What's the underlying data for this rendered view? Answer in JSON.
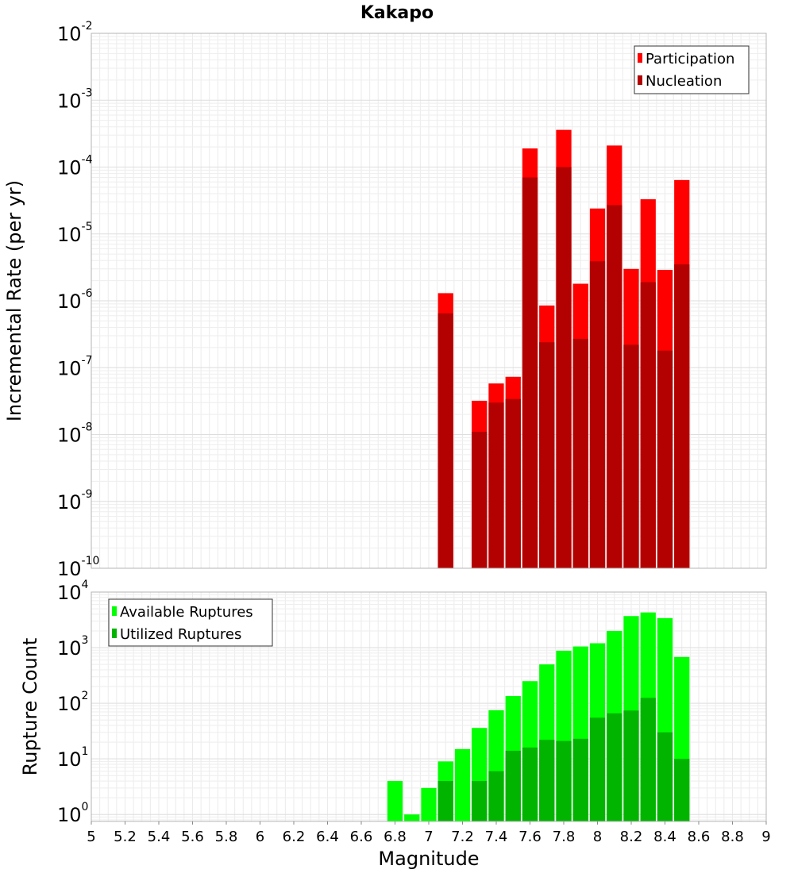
{
  "chart_data": [
    {
      "type": "bar",
      "title": "Kakapo",
      "xlabel": "",
      "ylabel": "Incremental Rate (per yr)",
      "yscale": "log",
      "ylim": [
        1e-10,
        0.01
      ],
      "xlim": [
        5,
        9
      ],
      "bin_width": 0.1,
      "grid": true,
      "legend_position": "top-right",
      "y_tick_labels": [
        {
          "base": "10",
          "exp": "-10"
        },
        {
          "base": "10",
          "exp": "-9"
        },
        {
          "base": "10",
          "exp": "-8"
        },
        {
          "base": "10",
          "exp": "-7"
        },
        {
          "base": "10",
          "exp": "-6"
        },
        {
          "base": "10",
          "exp": "-5"
        },
        {
          "base": "10",
          "exp": "-4"
        },
        {
          "base": "10",
          "exp": "-3"
        },
        {
          "base": "10",
          "exp": "-2"
        }
      ],
      "x": [
        7.1,
        7.3,
        7.4,
        7.5,
        7.6,
        7.7,
        7.8,
        7.9,
        8.0,
        8.1,
        8.2,
        8.3,
        8.4,
        8.5
      ],
      "series": [
        {
          "name": "Participation",
          "color": "#ff0000",
          "values": [
            1.3e-06,
            3.2e-08,
            5.8e-08,
            7.3e-08,
            0.00019,
            8.5e-07,
            0.00036,
            1.8e-06,
            2.4e-05,
            0.00021,
            3e-06,
            3.3e-05,
            2.9e-06,
            6.4e-05
          ]
        },
        {
          "name": "Nucleation",
          "color": "#b30000",
          "values": [
            6.5e-07,
            1.1e-08,
            3e-08,
            3.4e-08,
            7e-05,
            2.4e-07,
            0.0001,
            2.7e-07,
            3.9e-06,
            2.7e-05,
            2.2e-07,
            1.9e-06,
            1.8e-07,
            3.5e-06
          ]
        }
      ]
    },
    {
      "type": "bar",
      "title": "",
      "xlabel": "Magnitude",
      "ylabel": "Rupture Count",
      "yscale": "log",
      "ylim": [
        0.75,
        10000
      ],
      "xlim": [
        5,
        9
      ],
      "bin_width": 0.1,
      "grid": true,
      "legend_position": "top-left",
      "y_tick_labels": [
        {
          "base": "10",
          "exp": "0"
        },
        {
          "base": "10",
          "exp": "1"
        },
        {
          "base": "10",
          "exp": "2"
        },
        {
          "base": "10",
          "exp": "3"
        },
        {
          "base": "10",
          "exp": "4"
        }
      ],
      "x_tick_labels": [
        "5",
        "5.2",
        "5.4",
        "5.6",
        "5.8",
        "6",
        "6.2",
        "6.4",
        "6.6",
        "6.8",
        "7",
        "7.2",
        "7.4",
        "7.6",
        "7.8",
        "8",
        "8.2",
        "8.4",
        "8.6",
        "8.8",
        "9"
      ],
      "x": [
        6.8,
        6.9,
        7.0,
        7.1,
        7.2,
        7.3,
        7.4,
        7.5,
        7.6,
        7.7,
        7.8,
        7.9,
        8.0,
        8.1,
        8.2,
        8.3,
        8.4,
        8.5
      ],
      "series": [
        {
          "name": "Available Ruptures",
          "color": "#00ff00",
          "values": [
            4,
            1,
            3,
            9,
            15,
            36,
            75,
            135,
            250,
            500,
            880,
            1050,
            1200,
            2000,
            3700,
            4300,
            3400,
            680
          ]
        },
        {
          "name": "Utilized Ruptures",
          "color": "#00b400",
          "values": [
            0,
            0,
            0,
            4,
            0,
            4,
            6,
            14,
            16,
            22,
            21,
            23,
            55,
            66,
            74,
            125,
            30,
            10
          ]
        }
      ]
    }
  ]
}
